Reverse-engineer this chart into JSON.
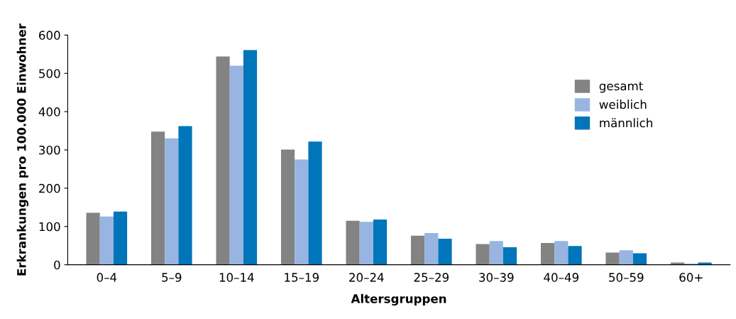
{
  "chart_data": {
    "type": "bar",
    "xlabel": "Altersgruppen",
    "ylabel": "Erkrankungen pro 100.000 Einwohner",
    "categories": [
      "0–4",
      "5–9",
      "10–14",
      "15–19",
      "20–24",
      "25–29",
      "30–39",
      "40–49",
      "50–59",
      "60+"
    ],
    "series": [
      {
        "name": "gesamt",
        "color": "#838383",
        "values": [
          136,
          348,
          544,
          301,
          115,
          76,
          54,
          57,
          32,
          6
        ]
      },
      {
        "name": "weiblich",
        "color": "#97b5e0",
        "values": [
          126,
          330,
          520,
          275,
          112,
          83,
          62,
          62,
          38,
          3
        ]
      },
      {
        "name": "männlich",
        "color": "#0075b9",
        "values": [
          139,
          362,
          561,
          322,
          118,
          68,
          46,
          49,
          30,
          6
        ]
      }
    ],
    "ylim": [
      0,
      600
    ],
    "yticks": [
      0,
      100,
      200,
      300,
      400,
      500,
      600
    ],
    "grid": false,
    "legend": "top right"
  }
}
